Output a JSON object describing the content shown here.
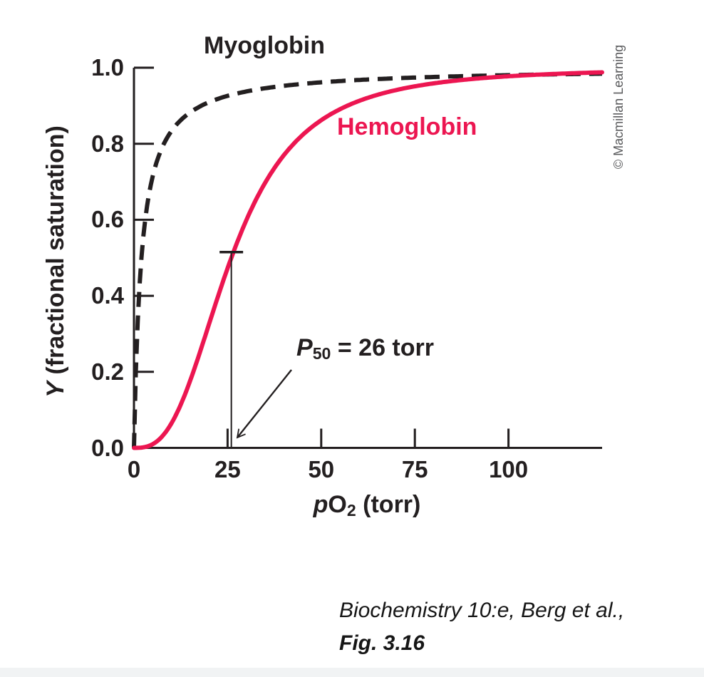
{
  "chart_data": {
    "type": "line",
    "title": "",
    "xlabel": "pO2 (torr)",
    "ylabel": "Y (fractional saturation)",
    "xlim": [
      0,
      125
    ],
    "ylim": [
      0,
      1.0
    ],
    "grid": false,
    "legend_position": "inline-curve-labels",
    "x_ticks": [
      0,
      25,
      50,
      75,
      100
    ],
    "x_tick_labels": [
      "0",
      "25",
      "50",
      "75",
      "100"
    ],
    "y_ticks": [
      0,
      0.2,
      0.4,
      0.6,
      0.8,
      1.0
    ],
    "y_tick_labels": [
      "0.0",
      "0.2",
      "0.4",
      "0.6",
      "0.8",
      "1.0"
    ],
    "series": [
      {
        "name": "Myoglobin",
        "line_style": "dashed",
        "color": "#231f20",
        "model": "hyperbolic",
        "K_torr": 2.0,
        "points_p_torr_vs_Y": [
          [
            0,
            0
          ],
          [
            1,
            0.33
          ],
          [
            2,
            0.5
          ],
          [
            5,
            0.71
          ],
          [
            10,
            0.83
          ],
          [
            20,
            0.91
          ],
          [
            30,
            0.94
          ],
          [
            50,
            0.96
          ],
          [
            75,
            0.97
          ],
          [
            100,
            0.98
          ],
          [
            125,
            0.98
          ]
        ]
      },
      {
        "name": "Hemoglobin",
        "line_style": "solid",
        "color": "#ec1651",
        "model": "hill",
        "P50_torr": 26,
        "hill_n": 2.8,
        "points_p_torr_vs_Y": [
          [
            0,
            0
          ],
          [
            5,
            0.01
          ],
          [
            10,
            0.06
          ],
          [
            15,
            0.18
          ],
          [
            20,
            0.32
          ],
          [
            26,
            0.5
          ],
          [
            30,
            0.6
          ],
          [
            40,
            0.77
          ],
          [
            50,
            0.86
          ],
          [
            60,
            0.91
          ],
          [
            75,
            0.95
          ],
          [
            100,
            0.98
          ],
          [
            125,
            0.99
          ]
        ]
      }
    ],
    "annotation": {
      "text": "P50 = 26 torr",
      "x_torr": 26,
      "y_fraction": 0.5
    }
  },
  "labels": {
    "myoglobin": "Myoglobin",
    "hemoglobin": "Hemoglobin"
  },
  "axis": {
    "ylabel_italic": "Y",
    "ylabel_rest": " (fractional saturation)",
    "xlabel_italic": "p",
    "xlabel_main": "O",
    "xlabel_sub": "2",
    "xlabel_rest": " (torr)"
  },
  "annotation": {
    "p": "P",
    "sub": "50",
    "rest": " = 26 torr"
  },
  "copyright": "© Macmillan Learning",
  "caption": {
    "line1": "Biochemistry 10:e, Berg et al.,",
    "line2": "Fig. 3.16"
  }
}
